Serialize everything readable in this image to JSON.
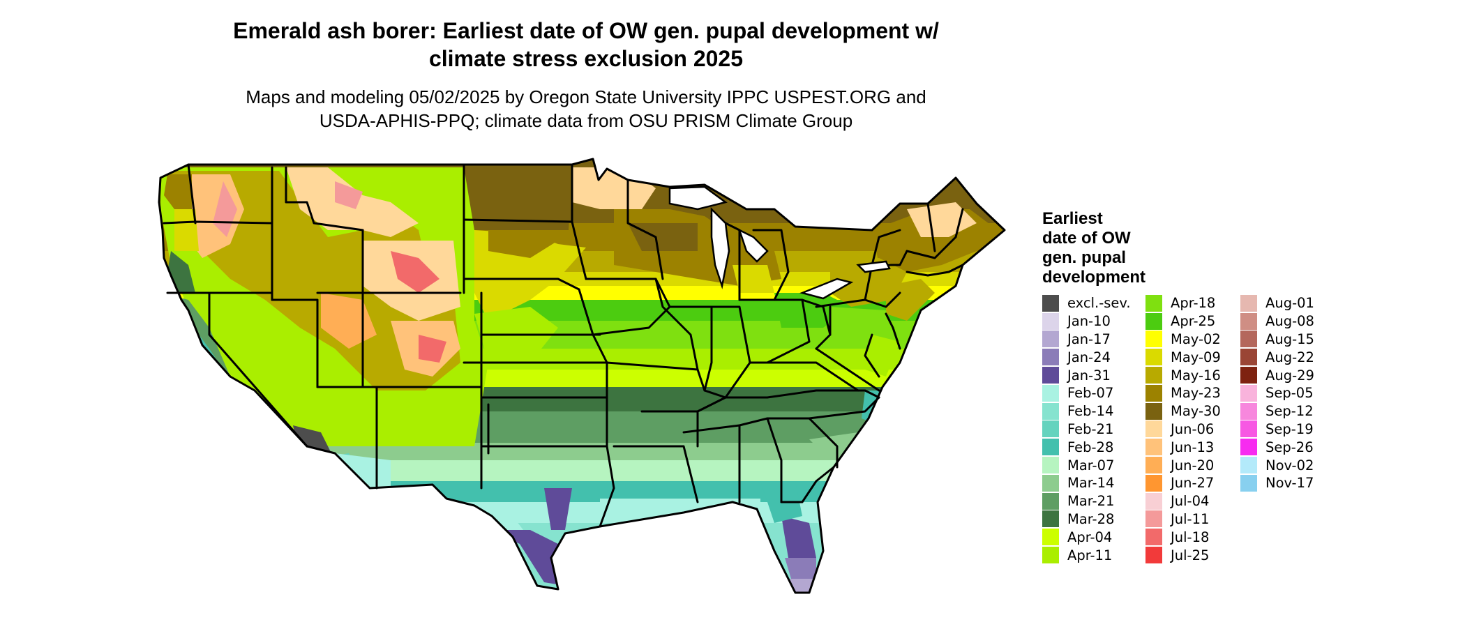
{
  "title_lines": [
    "Emerald ash borer: Earliest date of OW gen. pupal development w/",
    "climate stress exclusion 2025"
  ],
  "subtitle_lines": [
    "Maps and modeling 05/02/2025 by Oregon State University IPPC USPEST.ORG and",
    "USDA-APHIS-PPQ; climate data from OSU PRISM Climate Group"
  ],
  "legend": {
    "title_lines": [
      "Earliest",
      "date of OW",
      "gen. pupal",
      "development"
    ],
    "columns": [
      [
        {
          "label": "excl.-sev.",
          "color": "#4d4d4d"
        },
        {
          "label": "Jan-10",
          "color": "#dcd4ea"
        },
        {
          "label": "Jan-17",
          "color": "#b3a7d1"
        },
        {
          "label": "Jan-24",
          "color": "#8b7cb8"
        },
        {
          "label": "Jan-31",
          "color": "#5f4b99"
        },
        {
          "label": "Feb-07",
          "color": "#a9f2e2"
        },
        {
          "label": "Feb-14",
          "color": "#86e3cf"
        },
        {
          "label": "Feb-21",
          "color": "#64d3be"
        },
        {
          "label": "Feb-28",
          "color": "#43c0ad"
        },
        {
          "label": "Mar-07",
          "color": "#b6f4c0"
        },
        {
          "label": "Mar-14",
          "color": "#8dcc8e"
        },
        {
          "label": "Mar-21",
          "color": "#5e9e63"
        },
        {
          "label": "Mar-28",
          "color": "#3d7440"
        },
        {
          "label": "Apr-04",
          "color": "#ccff00"
        },
        {
          "label": "Apr-11",
          "color": "#aaee00"
        }
      ],
      [
        {
          "label": "Apr-18",
          "color": "#7fe010"
        },
        {
          "label": "Apr-25",
          "color": "#4ccc10"
        },
        {
          "label": "May-02",
          "color": "#ffff00"
        },
        {
          "label": "May-09",
          "color": "#dada00"
        },
        {
          "label": "May-16",
          "color": "#b8aa00"
        },
        {
          "label": "May-23",
          "color": "#9c8200"
        },
        {
          "label": "May-30",
          "color": "#7a6210"
        },
        {
          "label": "Jun-06",
          "color": "#ffd89a"
        },
        {
          "label": "Jun-13",
          "color": "#ffc27a"
        },
        {
          "label": "Jun-20",
          "color": "#ffae55"
        },
        {
          "label": "Jun-27",
          "color": "#ff9630"
        },
        {
          "label": "Jul-04",
          "color": "#f8cfd4"
        },
        {
          "label": "Jul-11",
          "color": "#f49a9a"
        },
        {
          "label": "Jul-18",
          "color": "#f26a6a"
        },
        {
          "label": "Jul-25",
          "color": "#f23a3a"
        }
      ],
      [
        {
          "label": "Aug-01",
          "color": "#e6b8b0"
        },
        {
          "label": "Aug-08",
          "color": "#cf8e84"
        },
        {
          "label": "Aug-15",
          "color": "#b4675c"
        },
        {
          "label": "Aug-22",
          "color": "#9a4535"
        },
        {
          "label": "Aug-29",
          "color": "#7e2210"
        },
        {
          "label": "Sep-05",
          "color": "#f9b3dc"
        },
        {
          "label": "Sep-12",
          "color": "#f787dd"
        },
        {
          "label": "Sep-19",
          "color": "#f758e3"
        },
        {
          "label": "Sep-26",
          "color": "#f72bf0"
        },
        {
          "label": "Nov-02",
          "color": "#b3eafa"
        },
        {
          "label": "Nov-17",
          "color": "#88d0ef"
        }
      ]
    ]
  }
}
